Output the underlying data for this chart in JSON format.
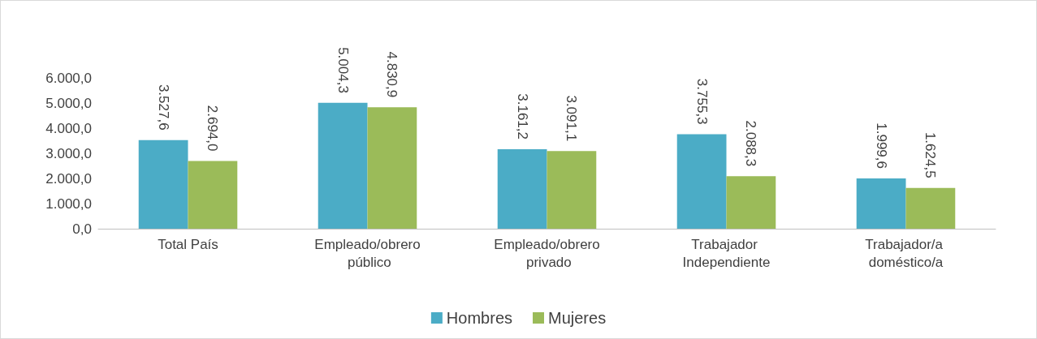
{
  "chart_data": {
    "type": "bar",
    "categories": [
      "Total País",
      "Empleado/obrero público",
      "Empleado/obrero privado",
      "Trabajador Independiente",
      "Trabajador/a doméstico/a"
    ],
    "series": [
      {
        "name": "Hombres",
        "color": "#4bacc6",
        "values": [
          3527.6,
          5004.3,
          3161.2,
          3755.3,
          1999.6
        ],
        "value_labels": [
          "3.527,6",
          "5.004,3",
          "3.161,2",
          "3.755,3",
          "1.999,6"
        ]
      },
      {
        "name": "Mujeres",
        "color": "#9bbb59",
        "values": [
          2694.0,
          4830.9,
          3091.1,
          2088.3,
          1624.5
        ],
        "value_labels": [
          "2.694,0",
          "4.830,9",
          "3.091,1",
          "2.088,3",
          "1.624,5"
        ]
      }
    ],
    "ylim": [
      0,
      6000
    ],
    "yticks": [
      {
        "value": 0,
        "label": "0,0"
      },
      {
        "value": 1000,
        "label": "1.000,0"
      },
      {
        "value": 2000,
        "label": "2.000,0"
      },
      {
        "value": 3000,
        "label": "3.000,0"
      },
      {
        "value": 4000,
        "label": "4.000,0"
      },
      {
        "value": 5000,
        "label": "5.000,0"
      },
      {
        "value": 6000,
        "label": "6.000,0"
      }
    ],
    "grid": false,
    "legend": "bottom"
  }
}
